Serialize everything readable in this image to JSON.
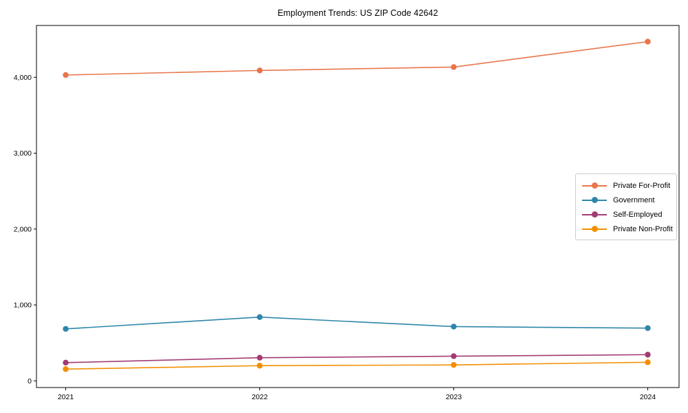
{
  "chart_data": {
    "type": "line",
    "title": "Employment Trends: US ZIP Code 42642",
    "categories": [
      "2021",
      "2022",
      "2023",
      "2024"
    ],
    "series": [
      {
        "name": "Private For-Profit",
        "color": "#E8764B",
        "values": [
          4030,
          4090,
          4135,
          4470
        ]
      },
      {
        "name": "Government",
        "color": "#2E86AB",
        "values": [
          685,
          840,
          715,
          695
        ]
      },
      {
        "name": "Self-Employed",
        "color": "#A23B72",
        "values": [
          240,
          305,
          325,
          345
        ]
      },
      {
        "name": "Private Non-Profit",
        "color": "#F18F01",
        "values": [
          155,
          200,
          210,
          245
        ]
      }
    ],
    "xlabel": "",
    "ylabel": "",
    "ylim": [
      -88,
      4683
    ],
    "y_ticks": [
      0,
      1000,
      2000,
      3000,
      4000
    ],
    "y_tick_labels": [
      "0",
      "1,000",
      "2,000",
      "3,000",
      "4,000"
    ],
    "grid": false,
    "legend_position": "right-middle",
    "marker": "circle",
    "colors": {
      "background": "#ffffff",
      "spine": "#000000",
      "text": "#000000",
      "legend_border": "#cccccc"
    }
  }
}
